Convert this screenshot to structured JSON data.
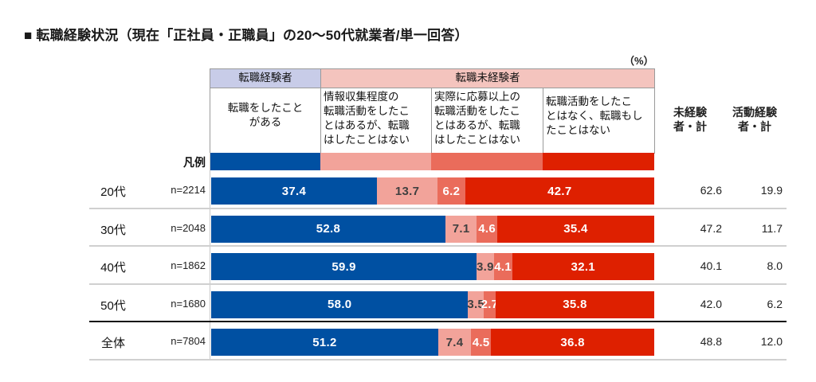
{
  "title": "■ 転職経験状況（現在「正社員・正職員」の20〜50代就業者/単一回答）",
  "unit_label": "（%）",
  "header": {
    "group_experienced": "転職経験者",
    "group_not_experienced": "転職未経験者",
    "categories": [
      "転職をしたこと\nがある",
      "情報収集程度の\n転職活動をしたこ\nとはあるが、転職\nはしたことはない",
      "実際に応募以上の\n転職活動をしたこ\nとはあるが、転職\nはしたことはない",
      "転職活動をしたこ\nとはなく、転職もし\nたことはない"
    ],
    "total_not_experienced": "未経験\n者・計",
    "total_activity": "活動経験\n者・計"
  },
  "legend_label": "凡例",
  "chart_data": {
    "type": "bar",
    "orientation": "horizontal",
    "stacked": "100%",
    "title": "転職経験状況（現在「正社員・正職員」の20〜50代就業者/単一回答）",
    "unit": "%",
    "categories": [
      "20代",
      "30代",
      "40代",
      "50代",
      "全体"
    ],
    "sample_sizes": [
      "n=2214",
      "n=2048",
      "n=1862",
      "n=1680",
      "n=7804"
    ],
    "series": [
      {
        "name": "転職をしたことがある",
        "group": "転職経験者",
        "color": "#0050a2",
        "label_color": "#ffffff",
        "values": [
          37.4,
          52.8,
          59.9,
          58.0,
          51.2
        ]
      },
      {
        "name": "情報収集程度の転職活動をしたことはあるが、転職はしたことはない",
        "group": "転職未経験者",
        "color": "#f2a39a",
        "label_color": "#404040",
        "values": [
          13.7,
          7.1,
          3.9,
          3.5,
          7.4
        ]
      },
      {
        "name": "実際に応募以上の転職活動をしたことはあるが、転職はしたことはない",
        "group": "転職未経験者",
        "color": "#ea6c5b",
        "label_color": "#ffffff",
        "values": [
          6.2,
          4.6,
          4.1,
          2.7,
          4.5
        ]
      },
      {
        "name": "転職活動をしたことはなく、転職もしたことはない",
        "group": "転職未経験者",
        "color": "#de2000",
        "label_color": "#ffffff",
        "values": [
          42.7,
          35.4,
          32.1,
          35.8,
          36.8
        ]
      }
    ],
    "totals": {
      "not_experienced_total": {
        "label": "未経験者・計",
        "values": [
          "62.6",
          "47.2",
          "40.1",
          "42.0",
          "48.8"
        ]
      },
      "activity_experienced_total": {
        "label": "活動経験者・計",
        "values": [
          "19.9",
          "11.7",
          "8.0",
          "6.2",
          "12.0"
        ]
      }
    },
    "xlim": [
      0,
      100
    ],
    "legend": "top-header"
  }
}
